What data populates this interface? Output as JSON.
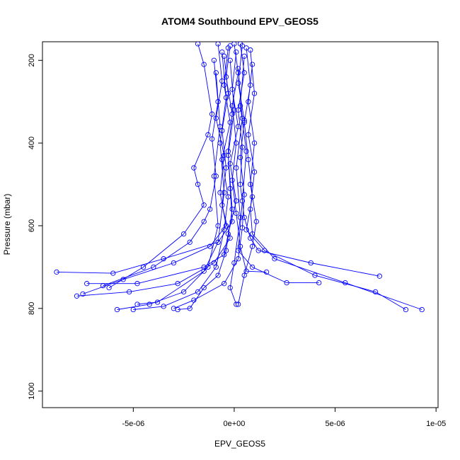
{
  "chart_data": {
    "type": "line",
    "title": "ATOM4 Southbound EPV_GEOS5",
    "xlabel": "EPV_GEOS5",
    "ylabel": "Pressure (mbar)",
    "xlim": [
      -9.5e-06,
      1.01e-05
    ],
    "ylim": [
      1040,
      155
    ],
    "y_reversed": true,
    "x_ticks": [
      {
        "value": -5e-06,
        "label": "-5e-06"
      },
      {
        "value": 0,
        "label": "0e+00"
      },
      {
        "value": 5e-06,
        "label": "5e-06"
      },
      {
        "value": 1e-05,
        "label": "1e-05"
      }
    ],
    "y_ticks": [
      {
        "value": 200,
        "label": "200"
      },
      {
        "value": 400,
        "label": "400"
      },
      {
        "value": 600,
        "label": "600"
      },
      {
        "value": 800,
        "label": "800"
      },
      {
        "value": 1000,
        "label": "1000"
      }
    ],
    "series_color": "#0000ff",
    "marker": "open-circle",
    "grid": false,
    "legend": "none",
    "series": [
      {
        "points": [
          [
            -8e-07,
            160
          ],
          [
            -6e-07,
            250
          ],
          [
            -9e-07,
            340
          ],
          [
            -5e-07,
            430
          ],
          [
            -7e-07,
            520
          ],
          [
            -4e-07,
            600
          ],
          [
            -1.2e-06,
            650
          ],
          [
            -3e-06,
            690
          ],
          [
            -5.5e-06,
            730
          ],
          [
            -7.5e-06,
            765
          ]
        ]
      },
      {
        "points": [
          [
            -2e-07,
            165
          ],
          [
            -4e-07,
            240
          ],
          [
            -1e-07,
            330
          ],
          [
            -3e-07,
            420
          ],
          [
            -2e-07,
            510
          ],
          [
            -1e-07,
            590
          ],
          [
            -8e-07,
            640
          ],
          [
            -3.5e-06,
            680
          ],
          [
            -6e-06,
            715
          ],
          [
            -8.8e-06,
            712
          ]
        ]
      },
      {
        "points": [
          [
            3e-07,
            160
          ],
          [
            5e-07,
            230
          ],
          [
            2e-07,
            320
          ],
          [
            4e-07,
            410
          ],
          [
            3e-07,
            500
          ],
          [
            5e-07,
            580
          ],
          [
            8e-07,
            630
          ],
          [
            1.2e-06,
            660
          ],
          [
            3.8e-06,
            690
          ],
          [
            7.2e-06,
            722
          ]
        ]
      },
      {
        "points": [
          [
            6e-07,
            170
          ],
          [
            8e-07,
            260
          ],
          [
            5e-07,
            350
          ],
          [
            7e-07,
            440
          ],
          [
            9e-07,
            530
          ],
          [
            6e-07,
            610
          ],
          [
            1.5e-06,
            660
          ],
          [
            4e-06,
            720
          ],
          [
            7e-06,
            760
          ],
          [
            8.5e-06,
            803
          ]
        ]
      },
      {
        "points": [
          [
            8e-07,
            175
          ],
          [
            1e-06,
            280
          ],
          [
            7e-07,
            380
          ],
          [
            1e-06,
            470
          ],
          [
            8e-07,
            560
          ],
          [
            9e-07,
            620
          ],
          [
            2e-06,
            680
          ],
          [
            5.5e-06,
            738
          ],
          [
            9.3e-06,
            803
          ]
        ]
      },
      {
        "points": [
          [
            1e-07,
            180
          ],
          [
            -1e-07,
            270
          ],
          [
            2e-07,
            360
          ],
          [
            -2e-07,
            450
          ],
          [
            1e-07,
            540
          ],
          [
            -3e-07,
            620
          ],
          [
            -5e-07,
            670
          ],
          [
            -1.5e-06,
            700
          ],
          [
            -4.8e-06,
            740
          ],
          [
            -7.3e-06,
            740
          ]
        ]
      },
      {
        "points": [
          [
            -5e-07,
            190
          ],
          [
            -3e-07,
            280
          ],
          [
            -6e-07,
            370
          ],
          [
            -4e-07,
            460
          ],
          [
            -6e-07,
            550
          ],
          [
            -2e-07,
            630
          ],
          [
            -1e-06,
            690
          ],
          [
            -2.8e-06,
            740
          ],
          [
            -5.2e-06,
            760
          ],
          [
            -7.8e-06,
            770
          ]
        ]
      },
      {
        "points": [
          [
            -1e-06,
            200
          ],
          [
            -8e-07,
            300
          ],
          [
            -1.1e-06,
            390
          ],
          [
            -9e-07,
            480
          ],
          [
            -1.2e-06,
            560
          ],
          [
            -1.5e-06,
            590
          ],
          [
            -2.2e-06,
            640
          ],
          [
            -4e-06,
            700
          ],
          [
            -6.5e-06,
            745
          ]
        ]
      },
      {
        "points": [
          [
            4e-07,
            165
          ],
          [
            2e-07,
            255
          ],
          [
            5e-07,
            345
          ],
          [
            3e-07,
            435
          ],
          [
            5e-07,
            525
          ],
          [
            4e-07,
            605
          ],
          [
            2e-07,
            680
          ],
          [
            -5e-07,
            740
          ],
          [
            -2e-06,
            780
          ],
          [
            -3e-06,
            800
          ]
        ]
      },
      {
        "points": [
          [
            -3e-07,
            170
          ],
          [
            -5e-07,
            260
          ],
          [
            -2e-07,
            350
          ],
          [
            -6e-07,
            440
          ],
          [
            -3e-07,
            530
          ],
          [
            -5e-07,
            610
          ],
          [
            -9e-07,
            700
          ],
          [
            -1.8e-06,
            760
          ],
          [
            -3.5e-06,
            795
          ],
          [
            -5e-06,
            803
          ]
        ]
      },
      {
        "points": [
          [
            0.0,
            160
          ],
          [
            2e-07,
            230
          ],
          [
            -1e-07,
            310
          ],
          [
            1e-07,
            400
          ],
          [
            -1e-07,
            490
          ],
          [
            1e-07,
            570
          ],
          [
            3e-07,
            650
          ],
          [
            6e-07,
            710
          ],
          [
            1.6e-06,
            712
          ]
        ]
      },
      {
        "points": [
          [
            9e-07,
            210
          ],
          [
            7e-07,
            300
          ],
          [
            1e-06,
            400
          ],
          [
            8e-07,
            500
          ],
          [
            1.1e-06,
            590
          ],
          [
            9e-07,
            650
          ],
          [
            5e-07,
            720
          ],
          [
            2e-07,
            790
          ]
        ]
      },
      {
        "points": [
          [
            -1.8e-06,
            160
          ],
          [
            -1.5e-06,
            210
          ],
          [
            -1.1e-06,
            330
          ],
          [
            -1.3e-06,
            380
          ],
          [
            -2e-06,
            460
          ],
          [
            -1.8e-06,
            500
          ],
          [
            -1.5e-06,
            550
          ],
          [
            -2.5e-06,
            620
          ],
          [
            -4.5e-06,
            700
          ],
          [
            -6.2e-06,
            750
          ]
        ]
      },
      {
        "points": [
          [
            -6e-07,
            180
          ],
          [
            -4e-07,
            290
          ],
          [
            -7e-07,
            400
          ],
          [
            -5e-07,
            520
          ],
          [
            -8e-07,
            640
          ],
          [
            -1.5e-06,
            710
          ],
          [
            -3.8e-06,
            785
          ],
          [
            -4.8e-06,
            790
          ]
        ]
      },
      {
        "points": [
          [
            5e-07,
            190
          ],
          [
            3e-07,
            310
          ],
          [
            6e-07,
            420
          ],
          [
            4e-07,
            540
          ],
          [
            2e-07,
            660
          ],
          [
            9e-07,
            700
          ],
          [
            2.6e-06,
            738
          ],
          [
            4.2e-06,
            738
          ]
        ]
      },
      {
        "points": [
          [
            -2e-07,
            200
          ],
          [
            0.0,
            320
          ],
          [
            -3e-07,
            430
          ],
          [
            -1e-07,
            560
          ],
          [
            -4e-07,
            660
          ],
          [
            -8e-07,
            720
          ],
          [
            -1.5e-06,
            750
          ],
          [
            -2.2e-06,
            800
          ],
          [
            -2.8e-06,
            803
          ]
        ]
      },
      {
        "points": [
          [
            2e-07,
            220
          ],
          [
            4e-07,
            340
          ],
          [
            1e-07,
            460
          ],
          [
            3e-07,
            580
          ],
          [
            0.0,
            690
          ],
          [
            -2e-07,
            750
          ],
          [
            1e-07,
            790
          ]
        ]
      },
      {
        "points": [
          [
            -9e-07,
            230
          ],
          [
            -7e-07,
            360
          ],
          [
            -1e-06,
            480
          ],
          [
            -8e-07,
            600
          ],
          [
            -1.3e-06,
            700
          ],
          [
            -2.5e-06,
            760
          ],
          [
            -4.2e-06,
            790
          ],
          [
            -5.8e-06,
            803
          ]
        ]
      }
    ]
  }
}
